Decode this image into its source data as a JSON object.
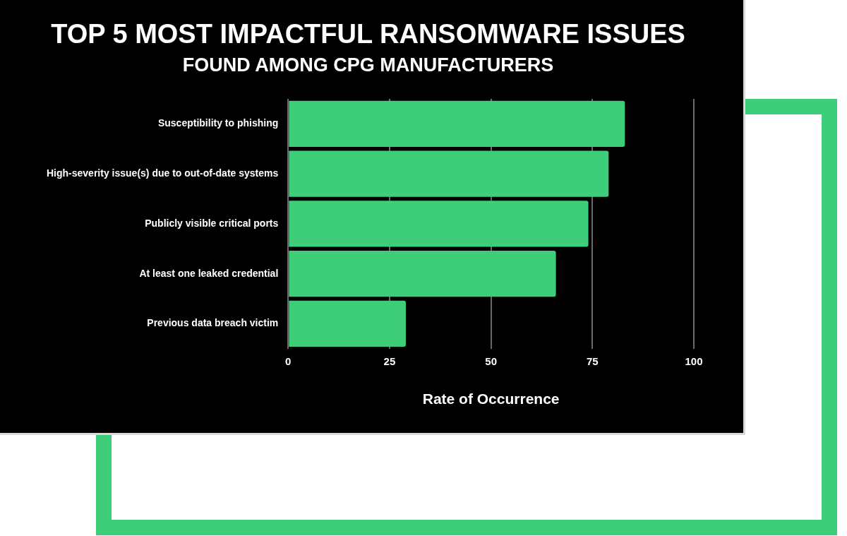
{
  "chart_data": {
    "type": "bar",
    "orientation": "horizontal",
    "title": "TOP 5 MOST IMPACTFUL RANSOMWARE ISSUES",
    "subtitle": "FOUND AMONG CPG MANUFACTURERS",
    "xlabel": "Rate of Occurrence",
    "categories": [
      "Susceptibility to phishing",
      "High-severity issue(s) due to out-of-date systems",
      "Publicly visible critical ports",
      "At least one leaked credential",
      "Previous data breach victim"
    ],
    "values": [
      83,
      79,
      74,
      66,
      29
    ],
    "color": "#3ecd78",
    "xlim": [
      0,
      100
    ],
    "xticks": [
      0,
      25,
      50,
      75,
      100
    ],
    "grid": "x"
  }
}
